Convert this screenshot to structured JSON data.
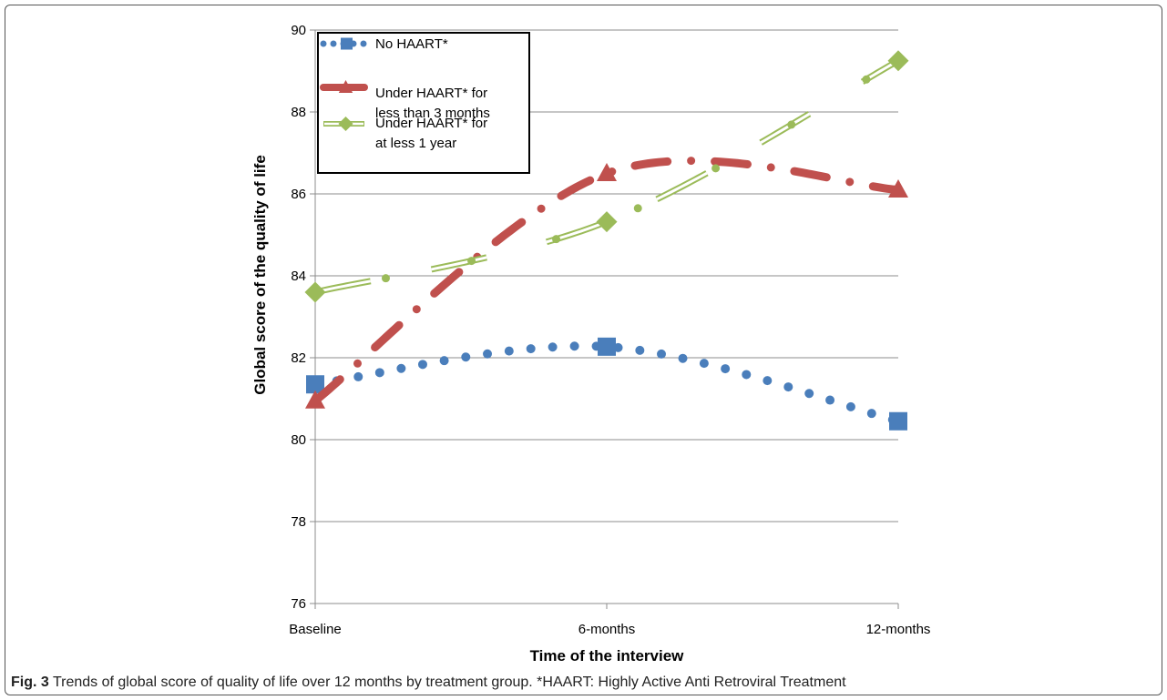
{
  "caption": {
    "label": "Fig. 3",
    "text": "Trends of global score of quality of life over 12 months by treatment group. *HAART: Highly Active Anti Retroviral Treatment"
  },
  "chart_data": {
    "type": "line",
    "title": "",
    "xlabel": "Time of the interview",
    "ylabel": "Global score of the quality of life",
    "categories": [
      "Baseline",
      "6-months",
      "12-months"
    ],
    "ylim": [
      76,
      90
    ],
    "yticks": [
      76,
      78,
      80,
      82,
      84,
      86,
      88,
      90
    ],
    "grid": "horizontal",
    "legend_position": "top-left",
    "series": [
      {
        "name": "No HAART*",
        "values": [
          81.35,
          82.27,
          80.45
        ],
        "color": "#4a7ebb",
        "marker": "square",
        "line": "dotted"
      },
      {
        "name": "Under HAART* for less than 3 months",
        "values": [
          80.95,
          86.5,
          86.1
        ],
        "color": "#c0504d",
        "marker": "triangle",
        "line": "long-dash-dot"
      },
      {
        "name": "Under HAART* for at less 1 year",
        "values": [
          83.6,
          85.32,
          89.25
        ],
        "color": "#9bbb59",
        "marker": "diamond",
        "line": "double-dash-dot"
      }
    ]
  }
}
